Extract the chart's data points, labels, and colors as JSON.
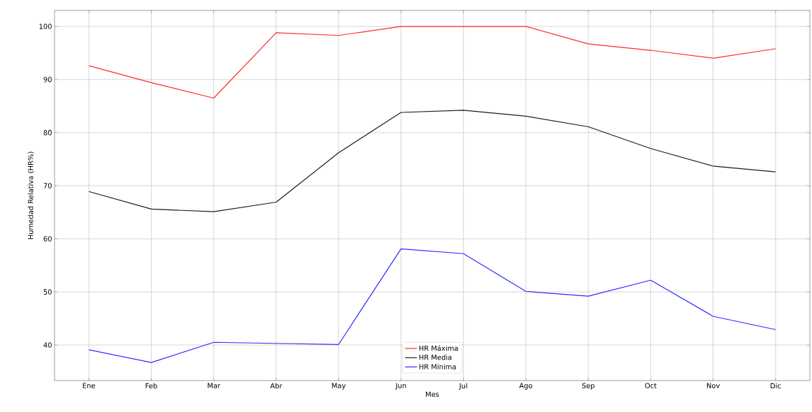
{
  "chart_data": {
    "type": "line",
    "xlabel": "Mes",
    "ylabel": "Humedad Relativa (HR%)",
    "categories": [
      "Ene",
      "Feb",
      "Mar",
      "Abr",
      "May",
      "Jun",
      "Jul",
      "Ago",
      "Sep",
      "Oct",
      "Nov",
      "Dic"
    ],
    "series": [
      {
        "name": "HR Máxima",
        "color": "#ff2a2a",
        "values": [
          92.6,
          89.4,
          86.5,
          98.8,
          98.3,
          100,
          100,
          100,
          96.7,
          95.5,
          94,
          95.8
        ]
      },
      {
        "name": "HR Media",
        "color": "#1a1a1a",
        "values": [
          68.9,
          65.6,
          65.1,
          66.9,
          76.2,
          83.8,
          84.2,
          83.1,
          81.1,
          77,
          73.7,
          72.6
        ]
      },
      {
        "name": "HR Mínima",
        "color": "#2a2aff",
        "values": [
          39.1,
          36.7,
          40.5,
          40.3,
          40.1,
          58.1,
          57.2,
          50.1,
          49.2,
          52.2,
          45.4,
          42.9
        ]
      }
    ],
    "ylim": [
      33.3,
      103
    ],
    "yticks": [
      40,
      50,
      60,
      70,
      80,
      90,
      100
    ],
    "grid": true,
    "legend": "bottom"
  }
}
